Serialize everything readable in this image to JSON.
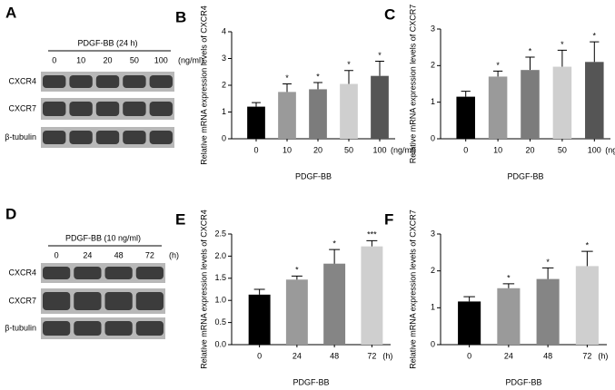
{
  "blots": [
    {
      "letter": "A",
      "header": "PDGF-BB (24 h)",
      "lanes": [
        "0",
        "10",
        "20",
        "50",
        "100"
      ],
      "unit": "(ng/ml)",
      "rows": [
        "CXCR4",
        "CXCR7",
        "β-tubulin"
      ]
    },
    {
      "letter": "D",
      "header": "PDGF-BB (10 ng/ml)",
      "lanes": [
        "0",
        "24",
        "48",
        "72"
      ],
      "unit": "(h)",
      "rows": [
        "CXCR4",
        "CXCR7",
        "β-tubulin"
      ]
    }
  ],
  "chart_data": [
    {
      "type": "bar",
      "letter": "B",
      "ylabel": "Relative mRNA expression levels of CXCR4",
      "xlabel": "PDGF-BB",
      "unit": "(ng/ml)",
      "categories": [
        "0",
        "10",
        "20",
        "50",
        "100"
      ],
      "values": [
        1.2,
        1.75,
        1.85,
        2.05,
        2.35
      ],
      "errors": [
        0.15,
        0.3,
        0.25,
        0.5,
        0.55
      ],
      "annotations": [
        null,
        "*",
        "*",
        "*",
        "*"
      ],
      "colors": [
        "#000000",
        "#9a9a9a",
        "#7c7c7c",
        "#cfcfcf",
        "#555555"
      ],
      "ylim": [
        0,
        4
      ],
      "yticks": [
        0,
        1,
        2,
        3,
        4
      ]
    },
    {
      "type": "bar",
      "letter": "C",
      "ylabel": "Relative mRNA expression levels of CXCR7",
      "xlabel": "PDGF-BB",
      "unit": "(ng/ml)",
      "categories": [
        "0",
        "10",
        "20",
        "50",
        "100"
      ],
      "values": [
        1.15,
        1.7,
        1.88,
        1.97,
        2.1
      ],
      "errors": [
        0.15,
        0.15,
        0.35,
        0.45,
        0.55
      ],
      "annotations": [
        null,
        "*",
        "*",
        "*",
        "*"
      ],
      "colors": [
        "#000000",
        "#9a9a9a",
        "#7c7c7c",
        "#cfcfcf",
        "#555555"
      ],
      "ylim": [
        0,
        3
      ],
      "yticks": [
        0,
        1,
        2,
        3
      ]
    },
    {
      "type": "bar",
      "letter": "E",
      "ylabel": "Relative mRNA expression levels of CXCR4",
      "xlabel": "PDGF-BB",
      "unit": "(h)",
      "categories": [
        "0",
        "24",
        "48",
        "72"
      ],
      "values": [
        1.13,
        1.47,
        1.83,
        2.22
      ],
      "errors": [
        0.12,
        0.08,
        0.32,
        0.13
      ],
      "annotations": [
        null,
        "*",
        "*",
        "***"
      ],
      "colors": [
        "#000000",
        "#9a9a9a",
        "#858585",
        "#cfcfcf"
      ],
      "ylim": [
        0,
        2.5
      ],
      "yticks": [
        {
          "value": 0,
          "label": "0.0"
        },
        0.5,
        {
          "value": 1,
          "label": "1.0"
        },
        1.5,
        {
          "value": 2,
          "label": "2.0"
        },
        2.5
      ]
    },
    {
      "type": "bar",
      "letter": "F",
      "ylabel": "Relative mRNA expression levels of CXCR7",
      "xlabel": "PDGF-BB",
      "unit": "(h)",
      "categories": [
        "0",
        "24",
        "48",
        "72"
      ],
      "values": [
        1.17,
        1.53,
        1.78,
        2.13
      ],
      "errors": [
        0.13,
        0.12,
        0.3,
        0.4
      ],
      "annotations": [
        null,
        "*",
        "*",
        "*"
      ],
      "colors": [
        "#000000",
        "#9a9a9a",
        "#858585",
        "#cfcfcf"
      ],
      "ylim": [
        0,
        3
      ],
      "yticks": [
        0,
        1,
        2,
        3
      ]
    }
  ]
}
